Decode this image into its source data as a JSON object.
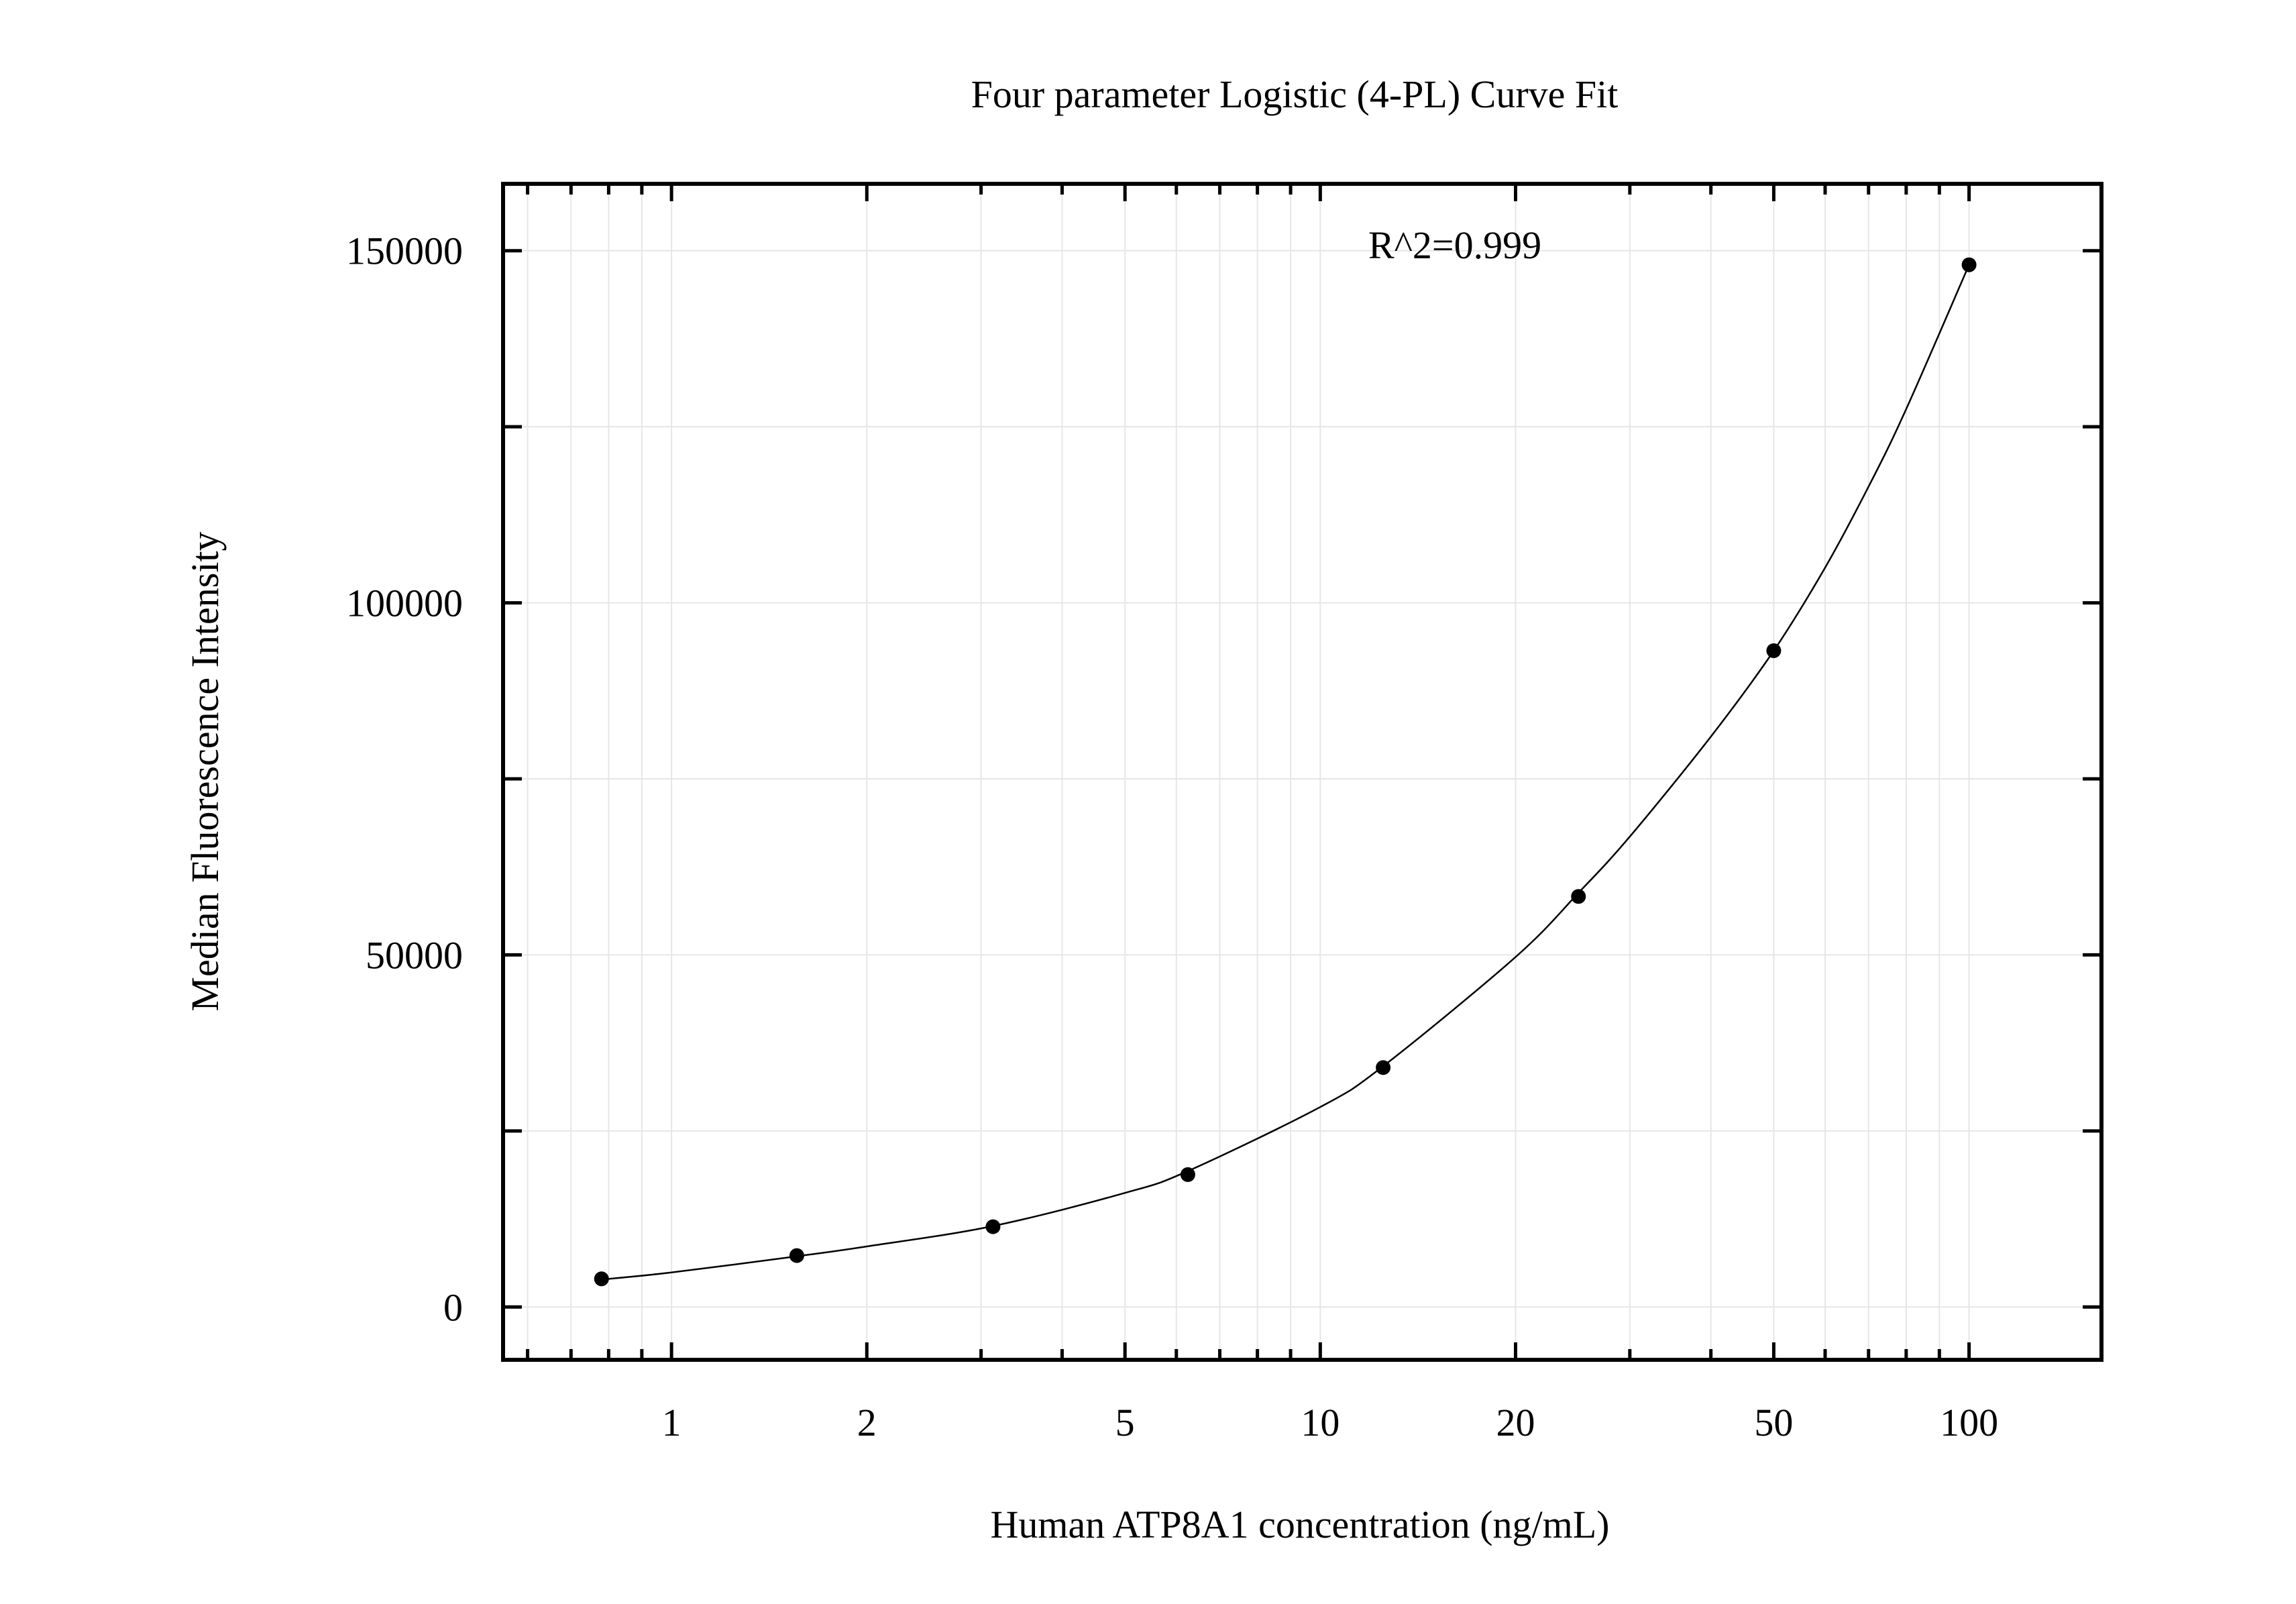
{
  "chart_data": {
    "type": "scatter",
    "title": "Four parameter Logistic (4-PL) Curve Fit",
    "xlabel": "Human ATP8A1 concentration (ng/mL)",
    "ylabel": "Median Fluorescence Intensity",
    "x_scale": "log",
    "xlim": [
      0.55,
      160
    ],
    "ylim": [
      -7500,
      159500
    ],
    "x_ticks": [
      1,
      2,
      5,
      10,
      20,
      50,
      100
    ],
    "x_tick_labels": [
      "1",
      "2",
      "5",
      "10",
      "20",
      "50",
      "100"
    ],
    "y_ticks": [
      0,
      50000,
      100000,
      150000
    ],
    "y_tick_labels": [
      "0",
      "50000",
      "100000",
      "150000"
    ],
    "grid": true,
    "annotation": "R^2=0.999",
    "points": {
      "x": [
        0.78,
        1.56,
        3.13,
        6.25,
        12.5,
        25,
        50,
        100
      ],
      "y": [
        4000,
        7300,
        11400,
        18800,
        34000,
        58300,
        93200,
        148000
      ]
    },
    "fit_curve": {
      "x": [
        0.78,
        1,
        1.56,
        2,
        3.13,
        5,
        6.25,
        10,
        12.5,
        20,
        25,
        30,
        40,
        50,
        60,
        70,
        80,
        100
      ],
      "y": [
        3900,
        4900,
        7200,
        8600,
        11500,
        16200,
        19300,
        28400,
        34200,
        49700,
        58800,
        66800,
        81000,
        93200,
        105000,
        116500,
        127500,
        148000
      ]
    }
  }
}
